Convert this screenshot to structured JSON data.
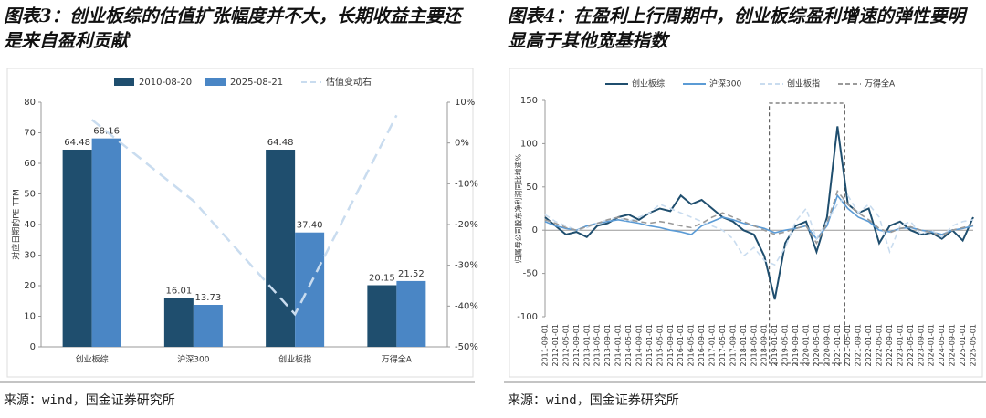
{
  "chart_data": [
    {
      "type": "bar",
      "title": "图表3：创业板综的估值扩张幅度并不大，长期收益主要还是来自盈利贡献",
      "source": "来源：wind，国金证券研究所",
      "ylabel": "对应日期的PE TTM",
      "categories": [
        "创业板综",
        "沪深300",
        "创业板指",
        "万得全A"
      ],
      "series": [
        {
          "name": "2010-08-20",
          "color": "#1f4e6e",
          "values": [
            64.48,
            16.01,
            64.48,
            20.15
          ],
          "value_labels": [
            "64.48",
            "16.01",
            "64.48",
            "20.15"
          ]
        },
        {
          "name": "2025-08-21",
          "color": "#4a86c5",
          "values": [
            68.16,
            13.73,
            37.4,
            21.52
          ],
          "value_labels": [
            "68.16",
            "13.73",
            "37.40",
            "21.52"
          ]
        },
        {
          "name": "估值变动右",
          "color": "#c9dcef",
          "type": "line",
          "axis": "y2",
          "values": [
            5.7,
            -14.2,
            -42,
            6.8
          ]
        }
      ],
      "ylim": [
        0,
        80
      ],
      "yticks": [
        0,
        10,
        20,
        30,
        40,
        50,
        60,
        70,
        80
      ],
      "y2lim": [
        -50,
        10
      ],
      "y2ticks": [
        {
          "value": 10,
          "label": "10%"
        },
        {
          "value": 0,
          "label": "0%"
        },
        {
          "value": -10,
          "label": "-10%"
        },
        {
          "value": -20,
          "label": "-20%"
        },
        {
          "value": -30,
          "label": "-30%"
        },
        {
          "value": -40,
          "label": "-40%"
        },
        {
          "value": -50,
          "label": "-50%"
        }
      ],
      "grid": false
    },
    {
      "type": "line",
      "title": "图表4：在盈利上行周期中，创业板综盈利增速的弹性要明显高于其他宽基指数",
      "source": "来源：wind，国金证券研究所",
      "ylabel": "归属母公司股东净利润同比增速%",
      "categories": [
        "2011-09-01",
        "2012-01-01",
        "2012-05-01",
        "2012-09-01",
        "2013-01-01",
        "2013-05-01",
        "2013-09-01",
        "2014-01-01",
        "2014-05-01",
        "2014-09-01",
        "2015-01-01",
        "2015-05-01",
        "2015-09-01",
        "2016-01-01",
        "2016-05-01",
        "2016-09-01",
        "2017-01-01",
        "2017-05-01",
        "2017-09-01",
        "2018-01-01",
        "2018-05-01",
        "2018-09-01",
        "2019-01-01",
        "2019-05-01",
        "2019-09-01",
        "2020-01-01",
        "2020-05-01",
        "2020-09-01",
        "2021-01-01",
        "2021-05-01",
        "2021-09-01",
        "2022-01-01",
        "2022-05-01",
        "2022-09-01",
        "2023-01-01",
        "2023-05-01",
        "2023-09-01",
        "2024-01-01",
        "2024-05-01",
        "2024-09-01",
        "2025-01-01",
        "2025-05-01"
      ],
      "series": [
        {
          "name": "创业板综",
          "color": "#1f4e6e",
          "dash": false,
          "values": [
            15,
            5,
            -5,
            -2,
            -8,
            5,
            8,
            15,
            18,
            12,
            20,
            25,
            22,
            40,
            30,
            35,
            25,
            15,
            10,
            0,
            -5,
            -30,
            -80,
            -15,
            5,
            10,
            -25,
            15,
            120,
            30,
            20,
            25,
            -15,
            5,
            10,
            0,
            -5,
            -3,
            -10,
            0,
            -12,
            15
          ]
        },
        {
          "name": "沪深300",
          "color": "#5b9bd5",
          "dash": false,
          "values": [
            10,
            5,
            2,
            0,
            5,
            8,
            10,
            12,
            10,
            8,
            5,
            3,
            0,
            -2,
            -5,
            5,
            10,
            15,
            12,
            8,
            5,
            2,
            -3,
            0,
            2,
            5,
            -10,
            5,
            40,
            25,
            15,
            10,
            0,
            -2,
            2,
            3,
            0,
            -2,
            -5,
            0,
            2,
            5
          ]
        },
        {
          "name": "创业板指",
          "color": "#c9dcef",
          "dash": true,
          "values": [
            18,
            10,
            5,
            0,
            3,
            8,
            12,
            15,
            10,
            15,
            20,
            30,
            25,
            20,
            15,
            10,
            5,
            0,
            -10,
            -30,
            -20,
            -35,
            -40,
            -20,
            10,
            25,
            -10,
            10,
            30,
            40,
            20,
            30,
            15,
            -25,
            5,
            10,
            -5,
            0,
            -8,
            5,
            10,
            12
          ]
        },
        {
          "name": "万得全A",
          "color": "#9a9a9a",
          "dash": true,
          "values": [
            12,
            8,
            3,
            0,
            4,
            8,
            12,
            15,
            12,
            10,
            8,
            10,
            8,
            5,
            3,
            8,
            15,
            20,
            15,
            10,
            5,
            0,
            -5,
            -2,
            2,
            5,
            -15,
            8,
            45,
            30,
            20,
            12,
            2,
            -3,
            2,
            4,
            0,
            -3,
            -6,
            0,
            3,
            6
          ]
        }
      ],
      "ylim": [
        -100,
        150
      ],
      "yticks": [
        -100,
        -50,
        0,
        50,
        100,
        150
      ],
      "grid": false
    }
  ]
}
